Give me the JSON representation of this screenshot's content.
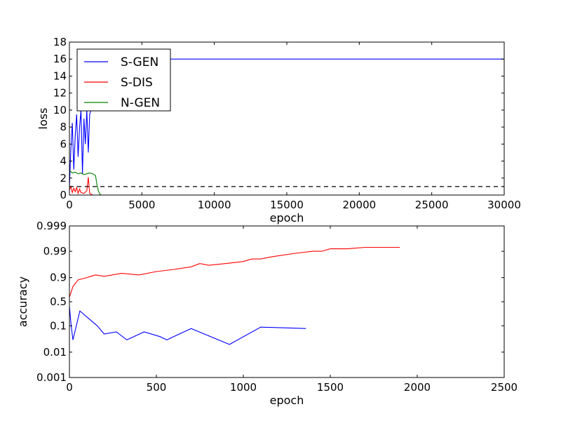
{
  "chart_data": [
    {
      "type": "line",
      "xlabel": "epoch",
      "ylabel": "loss",
      "xlim": [
        0,
        30000
      ],
      "ylim": [
        0,
        18
      ],
      "xticks": [
        "0",
        "5000",
        "10000",
        "15000",
        "20000",
        "25000",
        "30000"
      ],
      "yticks": [
        "0",
        "2",
        "4",
        "6",
        "8",
        "10",
        "12",
        "14",
        "16",
        "18"
      ],
      "grid": false,
      "legend_position": "top-left",
      "series": [
        {
          "name": "S-GEN",
          "color": "#0000ff",
          "description_points": [
            [
              0,
              1.0
            ],
            [
              100,
              5.5
            ],
            [
              200,
              8.5
            ],
            [
              300,
              3.0
            ],
            [
              400,
              7.0
            ],
            [
              500,
              9.5
            ],
            [
              600,
              4.5
            ],
            [
              700,
              8.0
            ],
            [
              800,
              10.0
            ],
            [
              900,
              2.5
            ],
            [
              1000,
              9.0
            ],
            [
              1100,
              6.0
            ],
            [
              1200,
              10.0
            ],
            [
              1300,
              5.0
            ],
            [
              1400,
              9.5
            ],
            [
              1500,
              10.0
            ],
            [
              1600,
              16.0
            ],
            [
              30000,
              16.0
            ]
          ],
          "x": [
            0,
            100,
            200,
            300,
            400,
            500,
            600,
            700,
            800,
            900,
            1000,
            1100,
            1200,
            1300,
            1400,
            1500,
            1600,
            30000
          ],
          "y": [
            1.0,
            5.5,
            8.5,
            3.0,
            7.0,
            9.5,
            4.5,
            8.0,
            10.0,
            2.5,
            9.0,
            6.0,
            10.0,
            5.0,
            9.5,
            10.0,
            16.0,
            16.0
          ]
        },
        {
          "name": "S-DIS",
          "color": "#ff0000",
          "x": [
            0,
            100,
            200,
            300,
            400,
            500,
            600,
            700,
            800,
            1000,
            1200,
            1300,
            1400,
            1500,
            1600,
            2000,
            30000
          ],
          "y": [
            0.6,
            1.0,
            0.3,
            0.8,
            0.4,
            0.9,
            0.2,
            0.7,
            0.3,
            0.2,
            0.5,
            2.1,
            0.2,
            0.1,
            0.0,
            0.0,
            0.0
          ]
        },
        {
          "name": "N-GEN",
          "color": "#008000",
          "x": [
            0,
            200,
            400,
            600,
            800,
            1000,
            1200,
            1400,
            1600,
            1800,
            1900,
            2000,
            2100,
            2200,
            30000
          ],
          "y": [
            2.9,
            2.6,
            2.7,
            2.5,
            2.6,
            2.4,
            2.5,
            2.6,
            2.5,
            2.3,
            1.2,
            0.5,
            0.1,
            0.0,
            0.0
          ]
        },
        {
          "name": "",
          "color": "#000000",
          "style": "dashed",
          "x": [
            0,
            30000
          ],
          "y": [
            1.0,
            1.0
          ]
        }
      ]
    },
    {
      "type": "line",
      "xlabel": "epoch",
      "ylabel": "accuracy",
      "xlim": [
        0,
        2500
      ],
      "ylim": [
        "0.001",
        "0.999"
      ],
      "y_scale": "logit",
      "xticks": [
        "0",
        "500",
        "1000",
        "1500",
        "2000",
        "2500"
      ],
      "yticks": [
        "0.001",
        "0.01",
        "0.1",
        "0.5",
        "0.9",
        "0.99",
        "0.999"
      ],
      "grid": false,
      "series": [
        {
          "name": "",
          "color": "#ff0000",
          "x": [
            0,
            20,
            50,
            100,
            150,
            200,
            300,
            400,
            500,
            600,
            700,
            750,
            800,
            900,
            1000,
            1050,
            1100,
            1150,
            1200,
            1300,
            1400,
            1450,
            1500,
            1600,
            1700,
            1800,
            1900
          ],
          "y": [
            0.6,
            0.8,
            0.88,
            0.9,
            0.92,
            0.91,
            0.93,
            0.92,
            0.94,
            0.95,
            0.96,
            0.97,
            0.965,
            0.97,
            0.975,
            0.98,
            0.98,
            0.983,
            0.985,
            0.988,
            0.99,
            0.99,
            0.992,
            0.992,
            0.993,
            0.993,
            0.993
          ]
        },
        {
          "name": "",
          "color": "#0000ff",
          "x": [
            0,
            10,
            20,
            60,
            160,
            200,
            270,
            330,
            430,
            520,
            560,
            700,
            920,
            1100,
            1360
          ],
          "y": [
            0.4,
            0.1,
            0.03,
            0.3,
            0.1,
            0.05,
            0.06,
            0.03,
            0.06,
            0.04,
            0.03,
            0.08,
            0.02,
            0.09,
            0.08
          ]
        }
      ]
    }
  ]
}
